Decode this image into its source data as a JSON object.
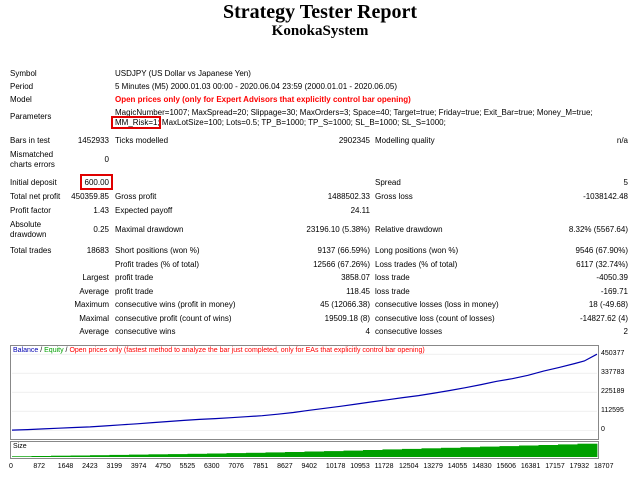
{
  "title": "Strategy Tester Report",
  "subtitle": "KonokaSystem",
  "header_rows": [
    {
      "label": "Symbol",
      "value": "USDJPY (US Dollar vs Japanese Yen)"
    },
    {
      "label": "Period",
      "value": "5 Minutes (M5) 2000.01.03 00:00 - 2020.06.04 23:59 (2000.01.01 - 2020.06.05)"
    },
    {
      "label": "Model",
      "value": "Open prices only (only for Expert Advisors that explicitly control bar opening)"
    }
  ],
  "parameters": {
    "label": "Parameters",
    "line1": "MagicNumber=1007; MaxSpread=20; Slippage=30; MaxOrders=3; Space=40; Target=true; Friday=true; Exit_Bar=true; Money_M=true;",
    "line2_highlight": "MM_Risk=1;",
    "line2_rest": " MaxLotSize=100; Lots=0.5; TP_B=1000; TP_S=1000; SL_B=1000; SL_S=1000;"
  },
  "bars": {
    "label": "Bars in test",
    "value": "1452933",
    "ticks_label": "Ticks modelled",
    "ticks_value": "2902345",
    "quality_label": "Modelling quality",
    "quality_value": "n/a"
  },
  "mismatched": {
    "label_line1": "Mismatched",
    "label_line2": "charts errors",
    "value": "0"
  },
  "initial_deposit": {
    "label": "Initial deposit",
    "value": "600.00",
    "spread_label": "Spread",
    "spread_value": "5"
  },
  "net_profit": {
    "label": "Total net profit",
    "value": "450359.85",
    "gross_profit_label": "Gross profit",
    "gross_profit_value": "1488502.33",
    "gross_loss_label": "Gross loss",
    "gross_loss_value": "-1038142.48"
  },
  "profit_factor": {
    "label": "Profit factor",
    "value": "1.43",
    "payoff_label": "Expected payoff",
    "payoff_value": "24.11"
  },
  "drawdown": {
    "label_line1": "Absolute",
    "label_line2": "drawdown",
    "value": "0.25",
    "max_label": "Maximal drawdown",
    "max_value": "23196.10 (5.38%)",
    "rel_label": "Relative drawdown",
    "rel_value": "8.32% (5567.64)"
  },
  "trades": {
    "label": "Total trades",
    "value": "18683",
    "short_label": "Short positions (won %)",
    "short_value": "9137 (66.59%)",
    "long_label": "Long positions (won %)",
    "long_value": "9546 (67.90%)",
    "profit_trades_label": "Profit trades (% of total)",
    "profit_trades_value": "12566 (67.26%)",
    "loss_trades_label": "Loss trades (% of total)",
    "loss_trades_value": "6117 (32.74%)"
  },
  "stats": [
    {
      "prefix": "Largest",
      "label": "profit trade",
      "value": "3858.07",
      "label2": "loss trade",
      "value2": "-4050.39"
    },
    {
      "prefix": "Average",
      "label": "profit trade",
      "value": "118.45",
      "label2": "loss trade",
      "value2": "-169.71"
    },
    {
      "prefix": "Maximum",
      "label": "consecutive wins (profit in money)",
      "value": "45 (12066.38)",
      "label2": "consecutive losses (loss in money)",
      "value2": "18 (-49.68)"
    },
    {
      "prefix": "Maximal",
      "label": "consecutive profit (count of wins)",
      "value": "19509.18 (8)",
      "label2": "consecutive loss (count of losses)",
      "value2": "-14827.62 (4)"
    },
    {
      "prefix": "Average",
      "label": "consecutive wins",
      "value": "4",
      "label2": "consecutive losses",
      "value2": "2"
    }
  ],
  "chart_legend": {
    "balance": "Balance",
    "sep1": " / ",
    "equity": "Equity",
    "sep2": " / ",
    "note": "Open prices only (fastest method to analyze the bar just completed, only for EAs that explicitly control bar opening)"
  },
  "size_label": "Size",
  "colors": {
    "balance": "#0000b0",
    "equity": "#00a000",
    "highlight": "#e00000",
    "size_bars": "#00a000",
    "note": "#ff0000"
  },
  "chart_data": {
    "type": "line",
    "x_ticks": [
      "0",
      "872",
      "1648",
      "2423",
      "3199",
      "3974",
      "4750",
      "5525",
      "6300",
      "7076",
      "7851",
      "8627",
      "9402",
      "10178",
      "10953",
      "11728",
      "12504",
      "13279",
      "14055",
      "14830",
      "15606",
      "16381",
      "17157",
      "17932",
      "18707"
    ],
    "y_ticks": [
      "450377",
      "337783",
      "225189",
      "112595",
      "0"
    ],
    "ylim": [
      -40000,
      475000
    ],
    "xlim": [
      0,
      18707
    ],
    "series": [
      {
        "name": "Balance",
        "x": [
          0,
          500,
          1000,
          1500,
          2000,
          2500,
          3000,
          3500,
          4000,
          4500,
          5000,
          5500,
          6000,
          6500,
          7000,
          7500,
          8000,
          8500,
          9000,
          9500,
          10000,
          10500,
          11000,
          11500,
          12000,
          12500,
          13000,
          13500,
          14000,
          14500,
          15000,
          15500,
          16000,
          16500,
          17000,
          17500,
          18000,
          18300,
          18707
        ],
        "y": [
          600,
          4000,
          8000,
          12000,
          16000,
          20000,
          26000,
          32000,
          38000,
          45000,
          52000,
          58000,
          64000,
          69000,
          74000,
          80000,
          86000,
          95000,
          105000,
          118000,
          130000,
          142000,
          155000,
          168000,
          180000,
          193000,
          205000,
          220000,
          235000,
          252000,
          270000,
          290000,
          305000,
          325000,
          350000,
          372000,
          395000,
          410000,
          450360
        ]
      }
    ],
    "size_values": [
      0.05,
      0.07,
      0.09,
      0.11,
      0.13,
      0.15,
      0.17,
      0.19,
      0.21,
      0.23,
      0.25,
      0.28,
      0.3,
      0.33,
      0.36,
      0.39,
      0.42,
      0.46,
      0.5,
      0.54,
      0.58,
      0.62,
      0.66,
      0.7,
      0.74,
      0.78,
      0.82,
      0.86,
      0.9,
      0.95
    ]
  }
}
